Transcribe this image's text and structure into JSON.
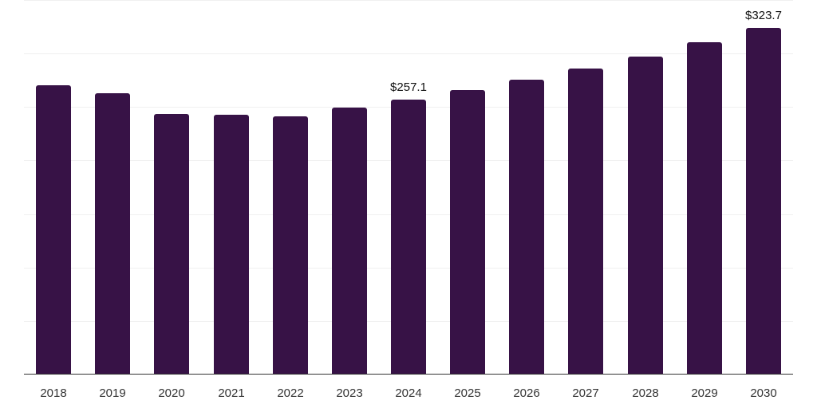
{
  "chart_data": {
    "type": "bar",
    "title": "",
    "xlabel": "",
    "ylabel": "",
    "categories": [
      "2018",
      "2019",
      "2020",
      "2021",
      "2022",
      "2023",
      "2024",
      "2025",
      "2026",
      "2027",
      "2028",
      "2029",
      "2030"
    ],
    "values": [
      270.0,
      263.2,
      243.8,
      242.4,
      241.6,
      249.1,
      257.1,
      266.2,
      275.9,
      286.3,
      297.5,
      310.2,
      323.7
    ],
    "data_labels": [
      {
        "category": "2024",
        "text": "$257.1"
      },
      {
        "category": "2030",
        "text": "$323.7"
      }
    ],
    "ylim": [
      0,
      350
    ],
    "y_gridline_step": 50,
    "grid": true,
    "y_tick_labels_visible": false,
    "legend": null,
    "bar_color": "#371246"
  }
}
